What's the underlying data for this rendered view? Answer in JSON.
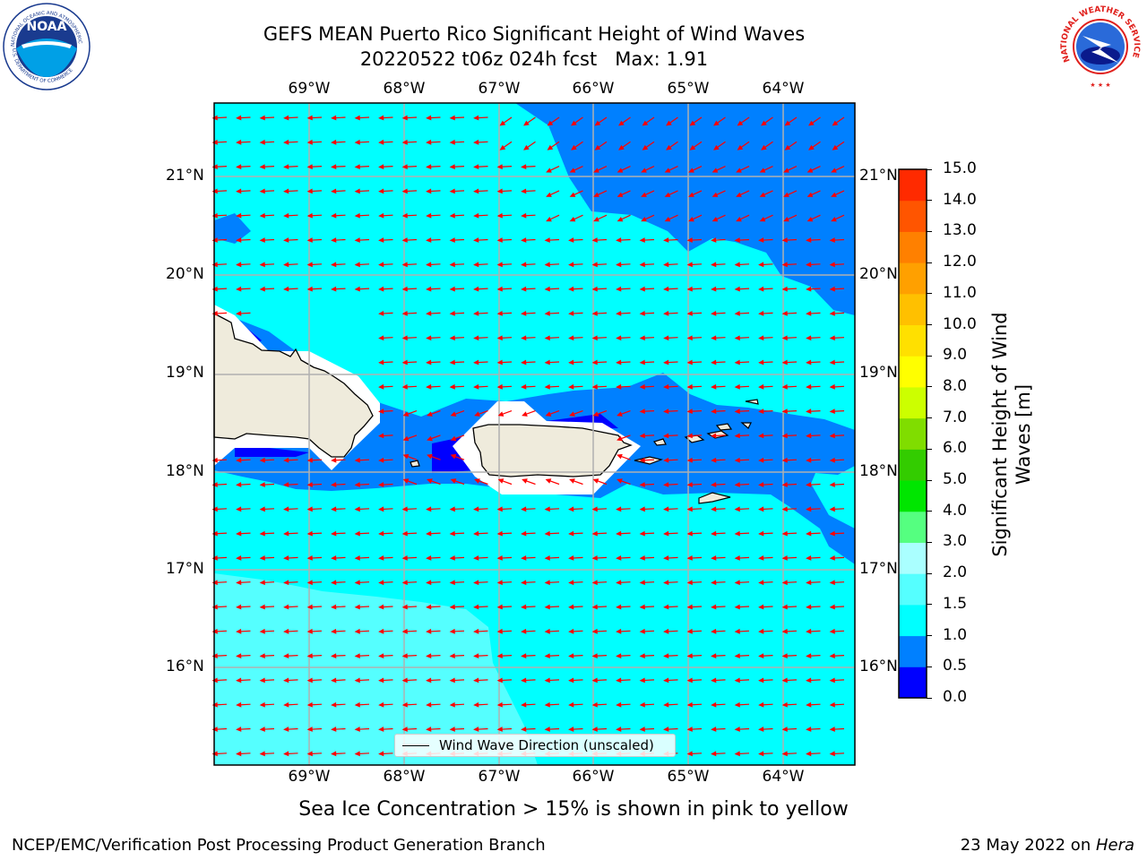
{
  "header": {
    "title_line1": "GEFS MEAN Puerto Rico Significant Height of Wind Waves",
    "title_line2": "20220522 t06z 024h fcst   Max: 1.91"
  },
  "logos": {
    "noaa": {
      "text": "NOAA",
      "ring_text": "NATIONAL OCEANIC AND ATMOSPHERIC ADMINISTRATION",
      "bottom_text": "U.S. DEPARTMENT OF COMMERCE"
    },
    "nws": {
      "ring_text": "NATIONAL WEATHER SERVICE"
    }
  },
  "map": {
    "lon_labels": [
      "69°W",
      "68°W",
      "67°W",
      "66°W",
      "65°W",
      "64°W"
    ],
    "lat_labels": [
      "21°N",
      "20°N",
      "19°N",
      "18°N",
      "17°N",
      "16°N"
    ],
    "legend_label": "Wind Wave Direction (unscaled)",
    "arrow_color": "#ff0000",
    "land_color": "#efebdc"
  },
  "colorbar": {
    "title": "Significant Height of Wind Waves [m]",
    "ticks": [
      "0.0",
      "0.5",
      "1.0",
      "1.5",
      "2.0",
      "3.0",
      "4.0",
      "5.0",
      "6.0",
      "7.0",
      "8.0",
      "9.0",
      "10.0",
      "11.0",
      "12.0",
      "13.0",
      "14.0",
      "15.0"
    ],
    "colors": [
      "#0000ff",
      "#0080ff",
      "#00ffff",
      "#55ffff",
      "#aaffff",
      "#55ff80",
      "#00e600",
      "#33cc00",
      "#80dd00",
      "#ccff00",
      "#ffff00",
      "#ffe000",
      "#ffc000",
      "#ffa000",
      "#ff8000",
      "#ff5500",
      "#ff2a00"
    ]
  },
  "caption": "Sea Ice Concentration > 15% is shown in pink to yellow",
  "footer": {
    "left": "NCEP/EMC/Verification Post Processing Product Generation Branch",
    "right_prefix": "23 May 2022 on ",
    "right_host": "Hera"
  }
}
